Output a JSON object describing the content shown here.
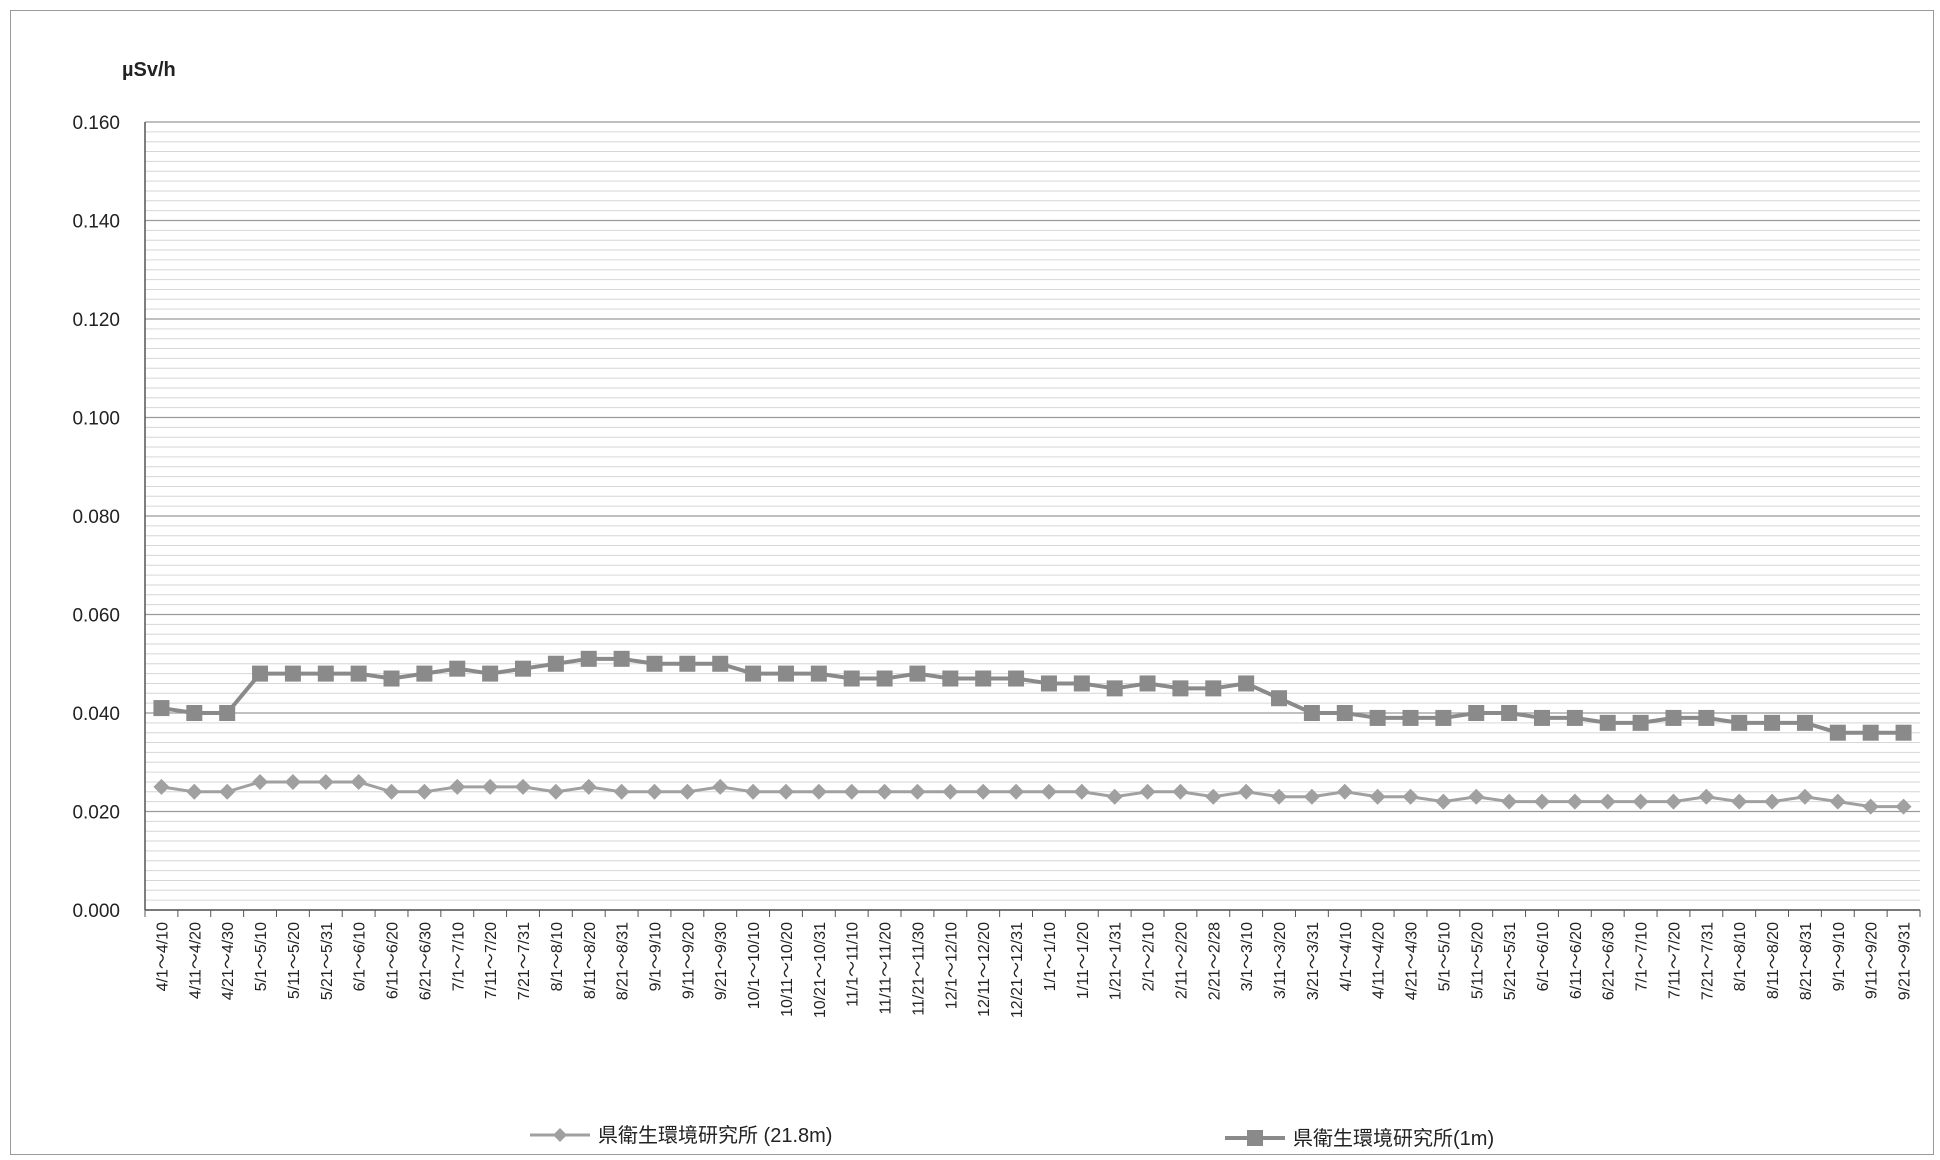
{
  "chart_data": {
    "type": "line",
    "ylabel": "µSv/h",
    "ylim": [
      0,
      0.16
    ],
    "yticks": [
      "0.000",
      "0.020",
      "0.040",
      "0.060",
      "0.080",
      "0.100",
      "0.120",
      "0.140",
      "0.160"
    ],
    "grid": true,
    "legend_position": "bottom",
    "categories": [
      "4/1～4/10",
      "4/11～4/20",
      "4/21～4/30",
      "5/1～5/10",
      "5/11～5/20",
      "5/21～5/31",
      "6/1～6/10",
      "6/11～6/20",
      "6/21～6/30",
      "7/1～7/10",
      "7/11～7/20",
      "7/21～7/31",
      "8/1～8/10",
      "8/11～8/20",
      "8/21～8/31",
      "9/1～9/10",
      "9/11～9/20",
      "9/21～9/30",
      "10/1～10/10",
      "10/11～10/20",
      "10/21～10/31",
      "11/1～11/10",
      "11/11～11/20",
      "11/21～11/30",
      "12/1～12/10",
      "12/11～12/20",
      "12/21～12/31",
      "1/1～1/10",
      "1/11～1/20",
      "1/21～1/31",
      "2/1～2/10",
      "2/11～2/20",
      "2/21～2/28",
      "3/1～3/10",
      "3/11～3/20",
      "3/21～3/31",
      "4/1～4/10",
      "4/11～4/20",
      "4/21～4/30",
      "5/1～5/10",
      "5/11～5/20",
      "5/21～5/31",
      "6/1～6/10",
      "6/11～6/20",
      "6/21～6/30",
      "7/1～7/10",
      "7/11～7/20",
      "7/21～7/31",
      "8/1～8/10",
      "8/11～8/20",
      "8/21～8/31",
      "9/1～9/10",
      "9/11～9/20",
      "9/21～9/31"
    ],
    "series": [
      {
        "name": "県衛生環境研究所 (21.8m)",
        "color": "#a0a0a0",
        "marker": "diamond",
        "values": [
          0.025,
          0.024,
          0.024,
          0.026,
          0.026,
          0.026,
          0.026,
          0.024,
          0.024,
          0.025,
          0.025,
          0.025,
          0.024,
          0.025,
          0.024,
          0.024,
          0.024,
          0.025,
          0.024,
          0.024,
          0.024,
          0.024,
          0.024,
          0.024,
          0.024,
          0.024,
          0.024,
          0.024,
          0.024,
          0.023,
          0.024,
          0.024,
          0.023,
          0.024,
          0.023,
          0.023,
          0.024,
          0.023,
          0.023,
          0.022,
          0.023,
          0.022,
          0.022,
          0.022,
          0.022,
          0.022,
          0.022,
          0.023,
          0.022,
          0.022,
          0.023,
          0.022,
          0.021,
          0.021
        ]
      },
      {
        "name": "県衛生環境研究所(1m)",
        "color": "#8a8a8a",
        "marker": "square",
        "values": [
          0.041,
          0.04,
          0.04,
          0.048,
          0.048,
          0.048,
          0.048,
          0.047,
          0.048,
          0.049,
          0.048,
          0.049,
          0.05,
          0.051,
          0.051,
          0.05,
          0.05,
          0.05,
          0.048,
          0.048,
          0.048,
          0.047,
          0.047,
          0.048,
          0.047,
          0.047,
          0.047,
          0.046,
          0.046,
          0.045,
          0.046,
          0.045,
          0.045,
          0.046,
          0.043,
          0.04,
          0.04,
          0.039,
          0.039,
          0.039,
          0.04,
          0.04,
          0.039,
          0.039,
          0.038,
          0.038,
          0.039,
          0.039,
          0.038,
          0.038,
          0.038,
          0.036,
          0.036,
          0.036
        ]
      }
    ]
  }
}
